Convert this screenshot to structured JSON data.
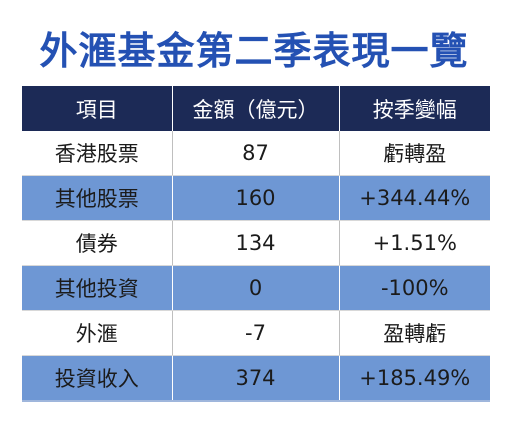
{
  "title": "外滙基金第二季表現一覽",
  "table": {
    "headers": [
      "項目",
      "金額（億元）",
      "按季變幅"
    ],
    "rows": [
      [
        "香港股票",
        "87",
        "虧轉盈"
      ],
      [
        "其他股票",
        "160",
        "+344.44%"
      ],
      [
        "債券",
        "134",
        "+1.51%"
      ],
      [
        "其他投資",
        "0",
        "-100%"
      ],
      [
        "外滙",
        "-7",
        "盈轉虧"
      ],
      [
        "投資收入",
        "374",
        "+185.49%"
      ]
    ]
  },
  "colors": {
    "title": "#2451b3",
    "header_bg": "#1c2a56",
    "stripe_bg": "#6e97d4",
    "plain_bg": "#ffffff"
  }
}
